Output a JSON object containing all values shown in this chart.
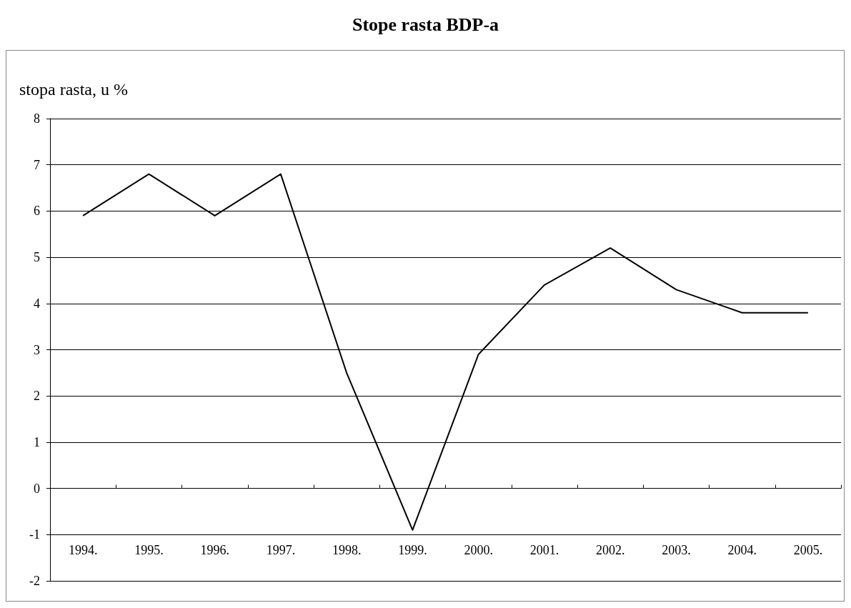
{
  "chart_data": {
    "type": "line",
    "title": "Stope rasta BDP-a",
    "ylabel": "stopa rasta, u %",
    "categories": [
      "1994.",
      "1995.",
      "1996.",
      "1997.",
      "1998.",
      "1999.",
      "2000.",
      "2001.",
      "2002.",
      "2003.",
      "2004.",
      "2005."
    ],
    "series": [
      {
        "color": "#000000",
        "values": [
          5.9,
          6.8,
          5.9,
          6.8,
          2.5,
          -0.9,
          2.9,
          4.4,
          5.2,
          4.3,
          3.8,
          3.8
        ]
      }
    ],
    "ylim": [
      -2,
      8
    ],
    "yticks": [
      -2,
      -1,
      0,
      1,
      2,
      3,
      4,
      5,
      6,
      7,
      8
    ],
    "grid": "y",
    "marker": "none",
    "line_style": "solid"
  }
}
